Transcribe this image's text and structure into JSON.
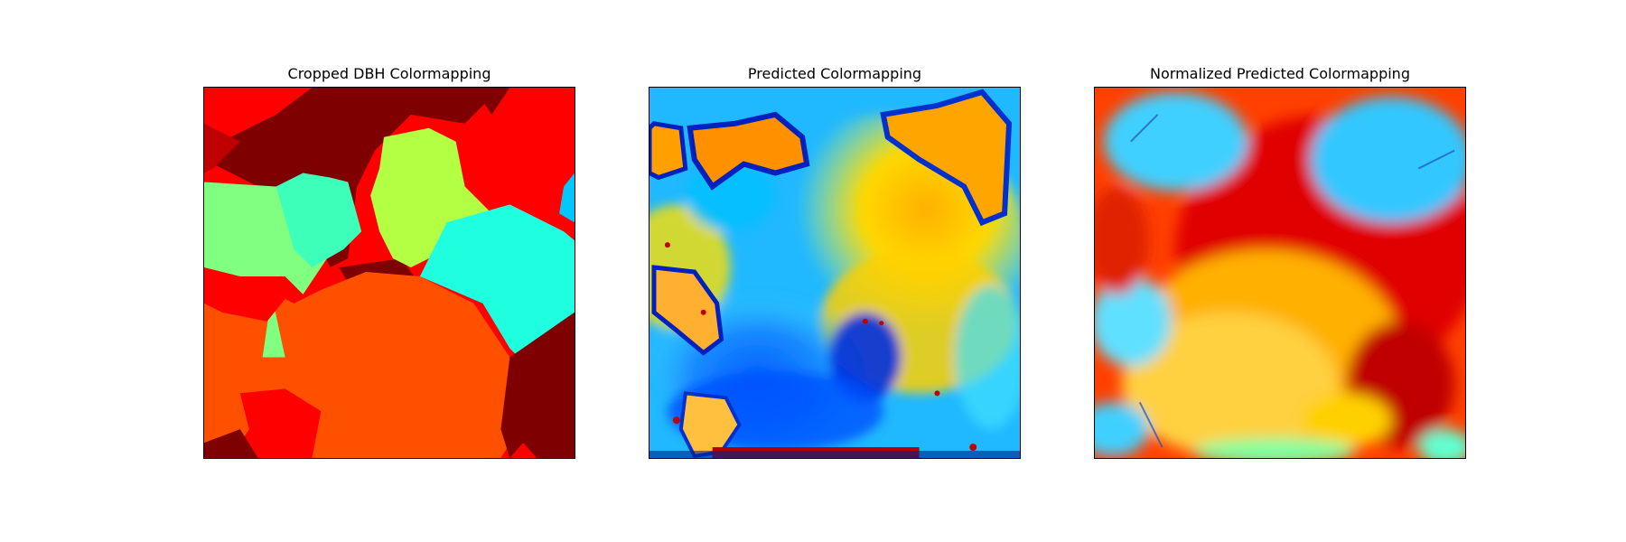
{
  "panels": [
    {
      "title": "Cropped DBH Colormapping"
    },
    {
      "title": "Predicted Colormapping"
    },
    {
      "title": "Normalized Predicted Colormapping"
    }
  ],
  "colormap": "jet",
  "colors": {
    "dark_red": "#7f0000",
    "red": "#ff0000",
    "orange_red": "#ff5000",
    "orange": "#ffa500",
    "yellow": "#ffff00",
    "yellow_green": "#b3ff44",
    "light_green": "#80ff80",
    "aquamarine": "#3dffb9",
    "cyan": "#1fffe0",
    "sky": "#00c8ff",
    "blue": "#0050ff",
    "navy": "#000080"
  }
}
